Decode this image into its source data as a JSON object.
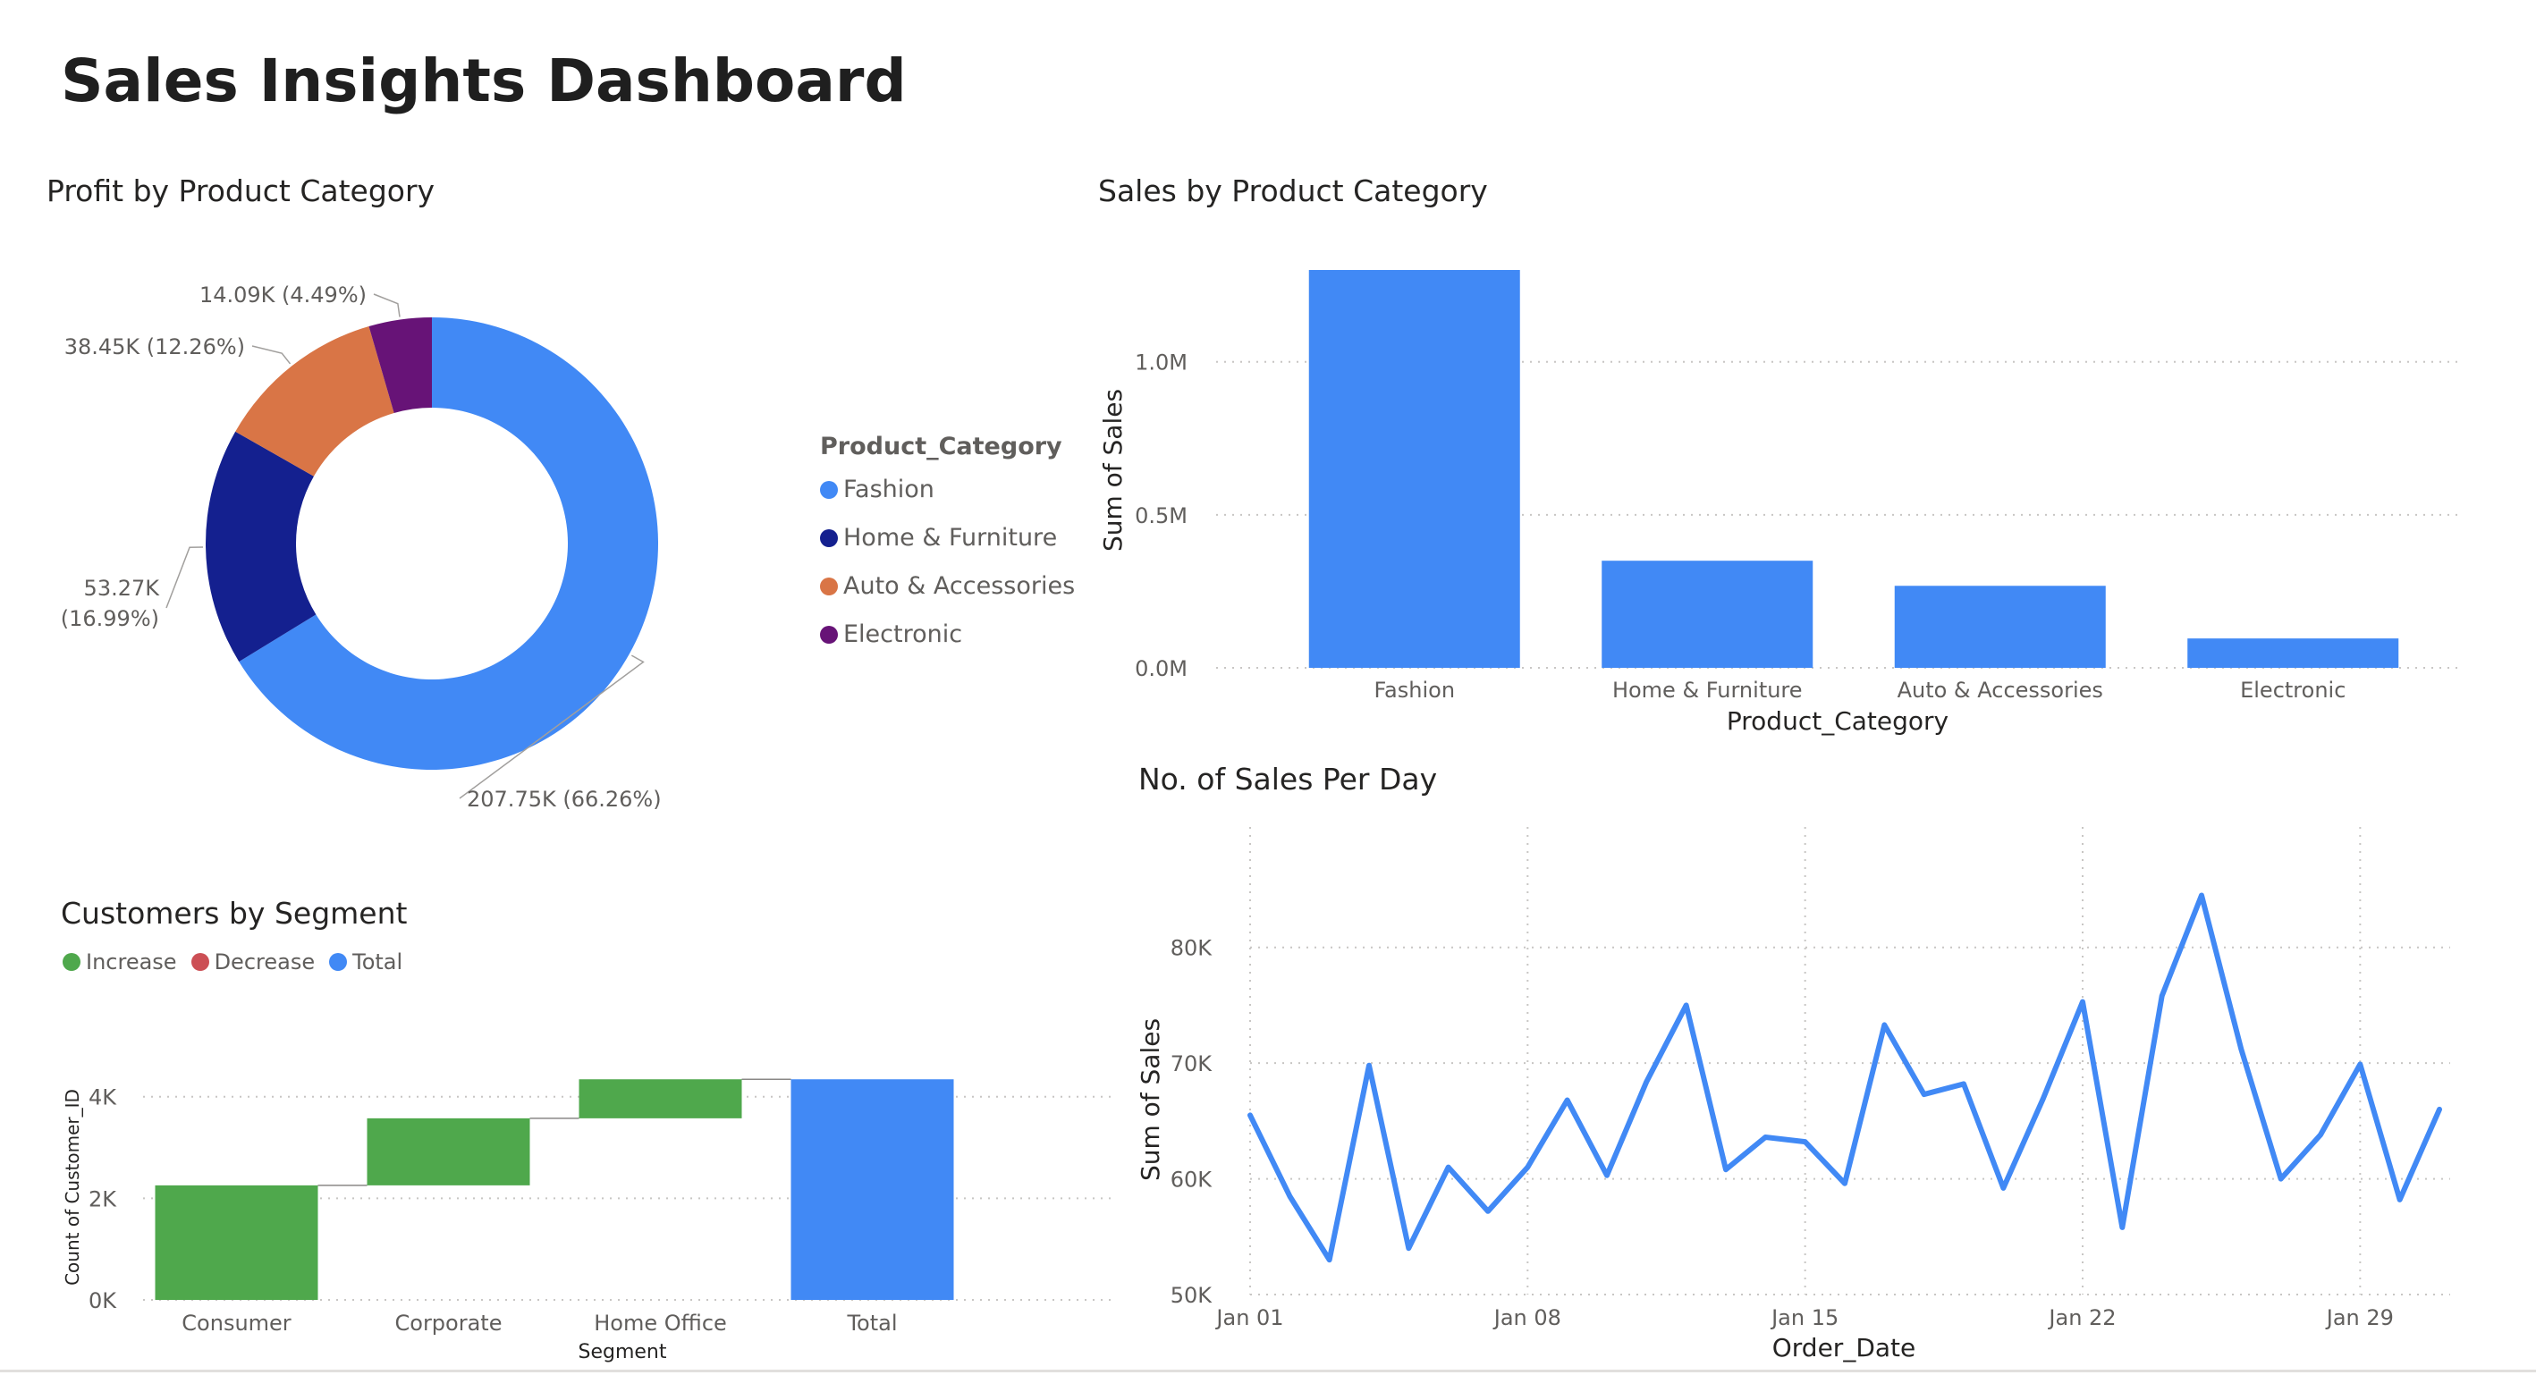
{
  "dashboard": {
    "title": "Sales Insights Dashboard"
  },
  "colors": {
    "blue": "#4189f5",
    "navy": "#14208f",
    "orange": "#d97546",
    "purple": "#671377",
    "green": "#4fa84c",
    "red": "#cc4f55",
    "grid": "#c8c6c4"
  },
  "chart_data": [
    {
      "id": "profit-donut",
      "type": "pie",
      "title": "Profit by Product Category",
      "legend_title": "Product_Category",
      "legend_position": "right",
      "categories": [
        "Fashion",
        "Home & Furniture",
        "Auto & Accessories",
        "Electronic"
      ],
      "values": [
        207.75,
        53.27,
        38.45,
        14.09
      ],
      "unit": "K",
      "data_labels": [
        "207.75K (66.26%)",
        "53.27K (16.99%)",
        "38.45K (12.26%)",
        "14.09K (4.49%)"
      ],
      "colors": [
        "#4189f5",
        "#14208f",
        "#d97546",
        "#671377"
      ]
    },
    {
      "id": "sales-bar",
      "type": "bar",
      "title": "Sales by Product Category",
      "xlabel": "Product_Category",
      "ylabel": "Sum of Sales",
      "categories": [
        "Fashion",
        "Home & Furniture",
        "Auto & Accessories",
        "Electronic"
      ],
      "values": [
        1300000,
        350000,
        268000,
        96000
      ],
      "ylim": [
        0,
        1300000
      ],
      "yticks": [
        0,
        500000,
        1000000
      ],
      "ytick_labels": [
        "0.0M",
        "0.5M",
        "1.0M"
      ],
      "color": "#4189f5"
    },
    {
      "id": "segment-waterfall",
      "type": "bar",
      "subtype": "waterfall",
      "title": "Customers by Segment",
      "xlabel": "Segment",
      "ylabel": "Count of Customer_ID",
      "legend": [
        "Increase",
        "Decrease",
        "Total"
      ],
      "legend_colors": [
        "#4fa84c",
        "#cc4f55",
        "#4189f5"
      ],
      "categories": [
        "Consumer",
        "Corporate",
        "Home Office",
        "Total"
      ],
      "values": [
        2255,
        1320,
        768,
        4343
      ],
      "ylim": [
        0,
        4400
      ],
      "yticks": [
        0,
        2000,
        4000
      ],
      "ytick_labels": [
        "0K",
        "2K",
        "4K"
      ]
    },
    {
      "id": "daily-line",
      "type": "line",
      "title": "No. of Sales Per Day",
      "xlabel": "Order_Date",
      "ylabel": "Sum of Sales",
      "x": [
        1,
        2,
        3,
        4,
        5,
        6,
        7,
        8,
        9,
        10,
        11,
        12,
        13,
        14,
        15,
        16,
        17,
        18,
        19,
        20,
        21,
        22,
        23,
        24,
        25,
        26,
        27,
        28,
        29,
        30,
        31
      ],
      "values": [
        65500,
        58500,
        53000,
        69800,
        54000,
        61000,
        57200,
        61000,
        66800,
        60300,
        68400,
        75000,
        60800,
        63600,
        63200,
        59600,
        73300,
        67300,
        68200,
        59200,
        66900,
        75300,
        55800,
        75800,
        84500,
        71200,
        60000,
        63800,
        69900,
        58200,
        66000
      ],
      "ylim": [
        50000,
        85000
      ],
      "yticks": [
        50000,
        60000,
        70000,
        80000
      ],
      "ytick_labels": [
        "50K",
        "60K",
        "70K",
        "80K"
      ],
      "xticks": [
        1,
        8,
        15,
        22,
        29
      ],
      "xtick_labels": [
        "Jan 01",
        "Jan 08",
        "Jan 15",
        "Jan 22",
        "Jan 29"
      ],
      "color": "#4189f5"
    }
  ]
}
